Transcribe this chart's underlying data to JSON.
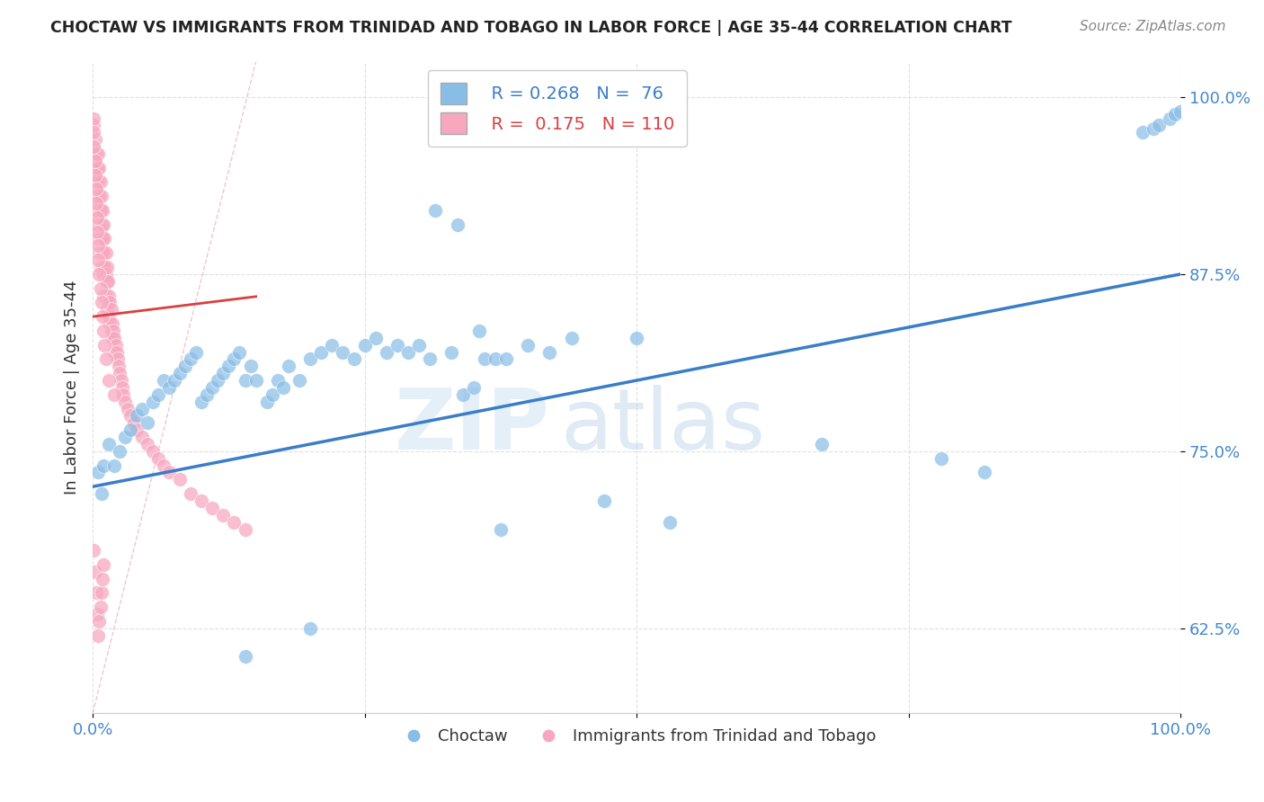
{
  "title": "CHOCTAW VS IMMIGRANTS FROM TRINIDAD AND TOBAGO IN LABOR FORCE | AGE 35-44 CORRELATION CHART",
  "source": "Source: ZipAtlas.com",
  "ylabel": "In Labor Force | Age 35-44",
  "ytick_labels": [
    "62.5%",
    "75.0%",
    "87.5%",
    "100.0%"
  ],
  "ytick_values": [
    0.625,
    0.75,
    0.875,
    1.0
  ],
  "xlim": [
    0.0,
    1.0
  ],
  "ylim": [
    0.565,
    1.025
  ],
  "legend_r1": "R = 0.268",
  "legend_n1": "N =  76",
  "legend_r2": "R =  0.175",
  "legend_n2": "N = 110",
  "color_blue": "#88bde6",
  "color_pink": "#f7a8bf",
  "color_blue_line": "#3a7dc9",
  "color_pink_line": "#e8505a",
  "color_diag": "#d0a0a8",
  "watermark_zip": "ZIP",
  "watermark_atlas": "atlas",
  "blue_line_x0": 0.0,
  "blue_line_y0": 0.725,
  "blue_line_x1": 1.0,
  "blue_line_y1": 0.875,
  "pink_line_x0": 0.0,
  "pink_line_y0": 0.845,
  "pink_line_x1": 0.18,
  "pink_line_y1": 0.862,
  "blue_x": [
    0.005,
    0.008,
    0.01,
    0.015,
    0.02,
    0.025,
    0.03,
    0.035,
    0.04,
    0.045,
    0.05,
    0.055,
    0.06,
    0.065,
    0.07,
    0.075,
    0.08,
    0.085,
    0.09,
    0.095,
    0.1,
    0.105,
    0.11,
    0.115,
    0.12,
    0.125,
    0.13,
    0.135,
    0.14,
    0.145,
    0.15,
    0.16,
    0.165,
    0.17,
    0.175,
    0.18,
    0.19,
    0.2,
    0.21,
    0.22,
    0.23,
    0.24,
    0.25,
    0.26,
    0.27,
    0.28,
    0.29,
    0.3,
    0.31,
    0.33,
    0.34,
    0.35,
    0.36,
    0.37,
    0.38,
    0.4,
    0.42,
    0.44,
    0.47,
    0.5,
    0.53,
    0.67,
    0.78,
    0.82,
    0.965,
    0.975,
    0.98,
    0.99,
    0.995,
    1.0,
    0.315,
    0.335,
    0.355,
    0.375,
    0.2,
    0.14
  ],
  "blue_y": [
    0.735,
    0.72,
    0.74,
    0.755,
    0.74,
    0.75,
    0.76,
    0.765,
    0.775,
    0.78,
    0.77,
    0.785,
    0.79,
    0.8,
    0.795,
    0.8,
    0.805,
    0.81,
    0.815,
    0.82,
    0.785,
    0.79,
    0.795,
    0.8,
    0.805,
    0.81,
    0.815,
    0.82,
    0.8,
    0.81,
    0.8,
    0.785,
    0.79,
    0.8,
    0.795,
    0.81,
    0.8,
    0.815,
    0.82,
    0.825,
    0.82,
    0.815,
    0.825,
    0.83,
    0.82,
    0.825,
    0.82,
    0.825,
    0.815,
    0.82,
    0.79,
    0.795,
    0.815,
    0.815,
    0.815,
    0.825,
    0.82,
    0.83,
    0.715,
    0.83,
    0.7,
    0.755,
    0.745,
    0.735,
    0.975,
    0.978,
    0.98,
    0.985,
    0.988,
    0.99,
    0.92,
    0.91,
    0.835,
    0.695,
    0.625,
    0.605
  ],
  "pink_x": [
    0.001,
    0.001,
    0.002,
    0.002,
    0.002,
    0.003,
    0.003,
    0.003,
    0.004,
    0.004,
    0.004,
    0.005,
    0.005,
    0.005,
    0.005,
    0.006,
    0.006,
    0.006,
    0.006,
    0.007,
    0.007,
    0.007,
    0.007,
    0.008,
    0.008,
    0.008,
    0.009,
    0.009,
    0.009,
    0.01,
    0.01,
    0.01,
    0.01,
    0.011,
    0.011,
    0.012,
    0.012,
    0.012,
    0.013,
    0.013,
    0.013,
    0.014,
    0.014,
    0.015,
    0.015,
    0.016,
    0.016,
    0.017,
    0.017,
    0.018,
    0.018,
    0.019,
    0.02,
    0.02,
    0.021,
    0.022,
    0.023,
    0.024,
    0.025,
    0.026,
    0.027,
    0.028,
    0.03,
    0.032,
    0.035,
    0.038,
    0.04,
    0.045,
    0.05,
    0.055,
    0.06,
    0.065,
    0.07,
    0.08,
    0.09,
    0.1,
    0.11,
    0.12,
    0.13,
    0.14,
    0.0005,
    0.001,
    0.001,
    0.002,
    0.002,
    0.003,
    0.003,
    0.004,
    0.004,
    0.005,
    0.005,
    0.006,
    0.007,
    0.008,
    0.009,
    0.01,
    0.011,
    0.012,
    0.015,
    0.02,
    0.001,
    0.002,
    0.003,
    0.004,
    0.005,
    0.006,
    0.007,
    0.008,
    0.009,
    0.01
  ],
  "pink_y": [
    0.98,
    0.96,
    0.97,
    0.95,
    0.93,
    0.96,
    0.94,
    0.92,
    0.95,
    0.93,
    0.91,
    0.96,
    0.94,
    0.92,
    0.9,
    0.95,
    0.93,
    0.91,
    0.89,
    0.94,
    0.92,
    0.9,
    0.88,
    0.93,
    0.91,
    0.89,
    0.92,
    0.9,
    0.88,
    0.91,
    0.89,
    0.875,
    0.86,
    0.9,
    0.88,
    0.89,
    0.875,
    0.86,
    0.88,
    0.87,
    0.85,
    0.87,
    0.855,
    0.86,
    0.845,
    0.855,
    0.84,
    0.85,
    0.835,
    0.84,
    0.83,
    0.835,
    0.83,
    0.82,
    0.825,
    0.82,
    0.815,
    0.81,
    0.805,
    0.8,
    0.795,
    0.79,
    0.785,
    0.78,
    0.775,
    0.77,
    0.765,
    0.76,
    0.755,
    0.75,
    0.745,
    0.74,
    0.735,
    0.73,
    0.72,
    0.715,
    0.71,
    0.705,
    0.7,
    0.695,
    0.985,
    0.975,
    0.965,
    0.955,
    0.945,
    0.935,
    0.925,
    0.915,
    0.905,
    0.895,
    0.885,
    0.875,
    0.865,
    0.855,
    0.845,
    0.835,
    0.825,
    0.815,
    0.8,
    0.79,
    0.68,
    0.665,
    0.65,
    0.635,
    0.62,
    0.63,
    0.64,
    0.65,
    0.66,
    0.67
  ]
}
